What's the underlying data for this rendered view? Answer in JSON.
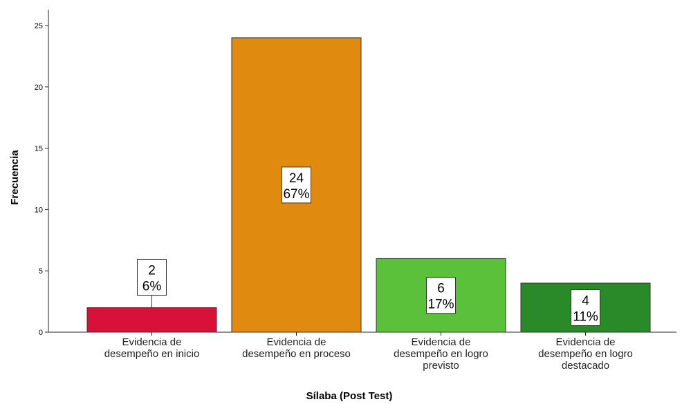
{
  "chart_data": {
    "type": "bar",
    "title": "",
    "xlabel": "Sílaba (Post Test)",
    "ylabel": "Frecuencia",
    "ylim": [
      0,
      25
    ],
    "yticks": [
      0,
      5,
      10,
      15,
      20,
      25
    ],
    "grid": false,
    "legend": "none",
    "categories": [
      [
        "Evidencia de",
        "desempeño en inicio"
      ],
      [
        "Evidencia de",
        "desempeño en proceso"
      ],
      [
        "Evidencia de",
        "desempeño en logro",
        "previsto"
      ],
      [
        "Evidencia de",
        "desempeño en logro",
        "destacado"
      ]
    ],
    "values": [
      2,
      24,
      6,
      4
    ],
    "percent_labels": [
      "6%",
      "67%",
      "17%",
      "11%"
    ],
    "count_labels": [
      "2",
      "24",
      "6",
      "4"
    ],
    "colors": [
      "#d7113a",
      "#e08a10",
      "#5cc13a",
      "#2a8a2a"
    ]
  }
}
